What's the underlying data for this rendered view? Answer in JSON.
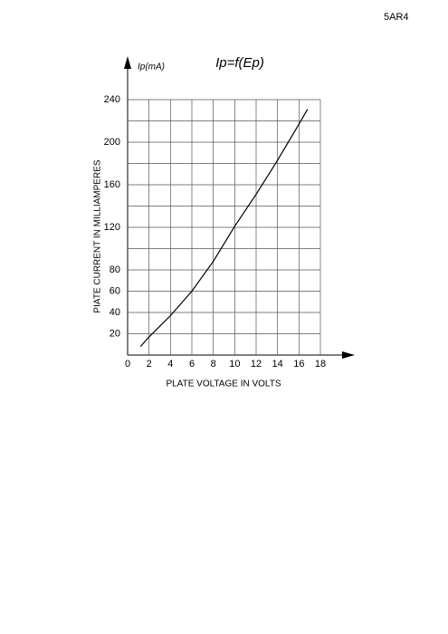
{
  "page_label": "5AR4",
  "chart_data": {
    "type": "line",
    "title": "Ip=f(Ep)",
    "y_unit_label": "Ip(mA)",
    "xlabel": "PLATE VOLTAGE IN VOLTS",
    "ylabel": "PIATE CURRENT IN MILLIAMPERES",
    "x": [
      1.2,
      2,
      4,
      6,
      8,
      10,
      12,
      14,
      16,
      16.8
    ],
    "series": [
      {
        "name": "Ip",
        "color": "#000000",
        "values": [
          8,
          17,
          37,
          60,
          88,
          121,
          151,
          183,
          217,
          231
        ]
      }
    ],
    "xlim": [
      0,
      18
    ],
    "ylim": [
      0,
      240
    ],
    "xticks": [
      0,
      2,
      4,
      6,
      8,
      10,
      12,
      14,
      16,
      18
    ],
    "yticks": [
      20,
      40,
      60,
      80,
      120,
      160,
      200,
      240
    ],
    "ygrid": [
      20,
      40,
      60,
      80,
      100,
      120,
      140,
      160,
      180,
      200,
      220,
      240
    ],
    "grid": true
  }
}
